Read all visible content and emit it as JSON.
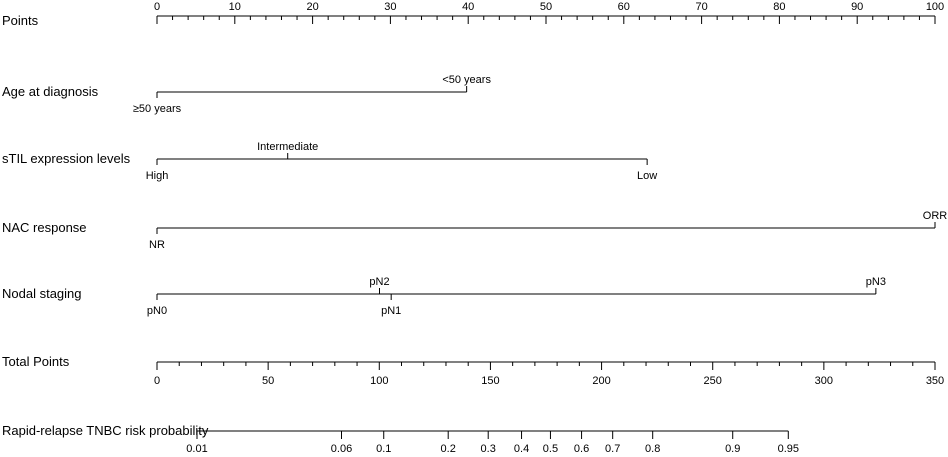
{
  "chart_data": {
    "type": "nomogram",
    "points_axis": {
      "label": "Points",
      "range": [
        0,
        100
      ],
      "major_ticks": [
        0,
        10,
        20,
        30,
        40,
        50,
        60,
        70,
        80,
        90,
        100
      ],
      "minor_step": 2
    },
    "variables": [
      {
        "label": "Age at diagnosis",
        "levels": [
          {
            "name": "≥50 years",
            "points": 0,
            "label_side": "below"
          },
          {
            "name": "<50 years",
            "points": 39.8,
            "label_side": "above"
          }
        ]
      },
      {
        "label": "sTIL expression levels",
        "levels": [
          {
            "name": "High",
            "points": 0,
            "label_side": "below"
          },
          {
            "name": "Intermediate",
            "points": 16.8,
            "label_side": "above"
          },
          {
            "name": "Low",
            "points": 63,
            "label_side": "below"
          }
        ]
      },
      {
        "label": "NAC response",
        "levels": [
          {
            "name": "NR",
            "points": 0,
            "label_side": "below"
          },
          {
            "name": "ORR",
            "points": 100,
            "label_side": "above"
          }
        ]
      },
      {
        "label": "Nodal staging",
        "levels": [
          {
            "name": "pN0",
            "points": 0,
            "label_side": "below"
          },
          {
            "name": "pN2",
            "points": 28.6,
            "label_side": "above"
          },
          {
            "name": "pN1",
            "points": 30.1,
            "label_side": "below"
          },
          {
            "name": "pN3",
            "points": 92.4,
            "label_side": "above"
          }
        ]
      }
    ],
    "total_points_axis": {
      "label": "Total Points",
      "range": [
        0,
        350
      ],
      "major_ticks": [
        0,
        50,
        100,
        150,
        200,
        250,
        300,
        350
      ],
      "minor_step": 10
    },
    "probability_axis": {
      "label": "Rapid-relapse TNBC risk probability",
      "ticks": [
        {
          "label": "0.01",
          "total_points": 18
        },
        {
          "label": "0.06",
          "total_points": 83
        },
        {
          "label": "0.1",
          "total_points": 102
        },
        {
          "label": "0.2",
          "total_points": 131
        },
        {
          "label": "0.3",
          "total_points": 149
        },
        {
          "label": "0.4",
          "total_points": 164
        },
        {
          "label": "0.5",
          "total_points": 177
        },
        {
          "label": "0.6",
          "total_points": 191
        },
        {
          "label": "0.7",
          "total_points": 205
        },
        {
          "label": "0.8",
          "total_points": 223
        },
        {
          "label": "0.9",
          "total_points": 259
        },
        {
          "label": "0.95",
          "total_points": 284
        }
      ]
    }
  }
}
